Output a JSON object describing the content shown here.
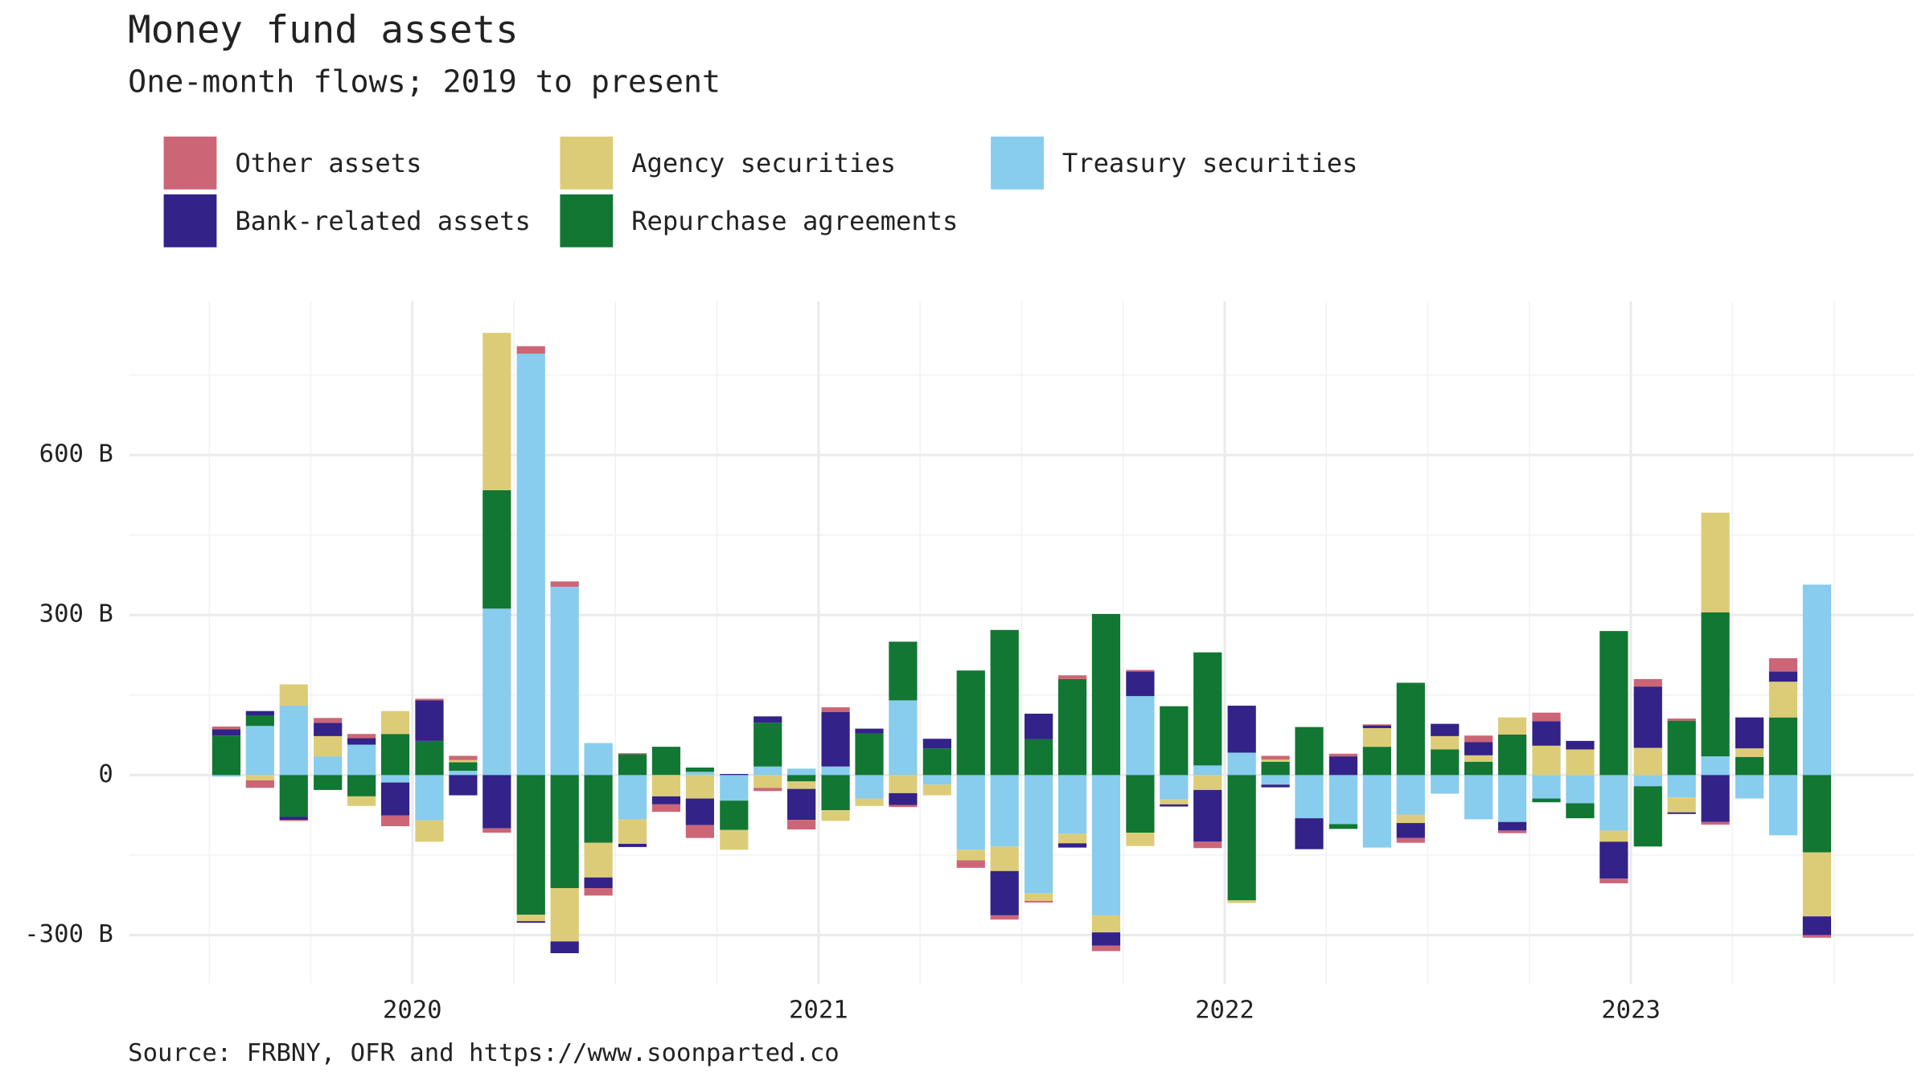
{
  "chart_data": {
    "type": "bar",
    "stacked": true,
    "title": "Money fund assets",
    "subtitle": "One-month flows; 2019 to present",
    "caption": "Source: FRBNY, OFR and https://www.soonparted.co",
    "x": [
      2019.542,
      2019.625,
      2019.708,
      2019.792,
      2019.875,
      2019.958,
      2020.042,
      2020.125,
      2020.208,
      2020.292,
      2020.375,
      2020.458,
      2020.542,
      2020.625,
      2020.708,
      2020.792,
      2020.875,
      2020.958,
      2021.042,
      2021.125,
      2021.208,
      2021.292,
      2021.375,
      2021.458,
      2021.542,
      2021.625,
      2021.708,
      2021.792,
      2021.875,
      2021.958,
      2022.042,
      2022.125,
      2022.208,
      2022.292,
      2022.375,
      2022.458,
      2022.542,
      2022.625,
      2022.708,
      2022.792,
      2022.875,
      2022.958,
      2023.042,
      2023.125,
      2023.208,
      2023.292,
      2023.375,
      2023.458
    ],
    "series": [
      {
        "name": "Other assets",
        "color": "#CC6677",
        "values": [
          5,
          -14,
          -2,
          9,
          8,
          -20,
          3,
          8,
          -8,
          14,
          10,
          -14,
          2,
          -14,
          -24,
          0,
          -6,
          -18,
          9,
          0,
          -4,
          0,
          -14,
          -8,
          -3,
          7,
          -10,
          3,
          0,
          -12,
          0,
          7,
          0,
          5,
          2,
          -9,
          0,
          12,
          -5,
          16,
          0,
          -9,
          14,
          4,
          -5,
          0,
          25,
          -5
        ]
      },
      {
        "name": "Bank-related assets",
        "color": "#332288",
        "values": [
          12,
          8,
          -6,
          25,
          12,
          -62,
          76,
          -38,
          -100,
          -3,
          -22,
          -20,
          -6,
          -15,
          -50,
          2,
          12,
          -58,
          102,
          9,
          -22,
          18,
          0,
          -83,
          48,
          -8,
          -25,
          46,
          -4,
          -97,
          88,
          -5,
          -58,
          35,
          5,
          -28,
          23,
          25,
          -16,
          46,
          16,
          -69,
          115,
          -3,
          -88,
          58,
          19,
          -35
        ]
      },
      {
        "name": "Agency securities",
        "color": "#DDCC77",
        "values": [
          0,
          -10,
          40,
          38,
          -18,
          43,
          -40,
          4,
          295,
          -12,
          -100,
          -65,
          -46,
          -40,
          -44,
          -37,
          -24,
          -14,
          -20,
          -14,
          -34,
          -20,
          -20,
          -46,
          -14,
          -18,
          -32,
          -25,
          -9,
          -28,
          -5,
          4,
          0,
          0,
          35,
          -16,
          25,
          12,
          32,
          55,
          48,
          -21,
          51,
          -28,
          187,
          16,
          67,
          -120
        ]
      },
      {
        "name": "Repurchase agreements",
        "color": "#117733",
        "values": [
          74,
          20,
          -78,
          -28,
          -40,
          77,
          64,
          16,
          222,
          -262,
          -212,
          -127,
          39,
          53,
          8,
          -55,
          82,
          -12,
          -66,
          78,
          110,
          50,
          196,
          272,
          67,
          180,
          302,
          -108,
          129,
          212,
          -235,
          25,
          90,
          -9,
          53,
          173,
          48,
          25,
          76,
          -7,
          -28,
          270,
          -113,
          102,
          270,
          34,
          108,
          -145
        ]
      },
      {
        "name": "Treasury securities",
        "color": "#88CCEE",
        "values": [
          -3,
          92,
          130,
          35,
          57,
          -14,
          -85,
          8,
          312,
          790,
          353,
          60,
          -83,
          0,
          6,
          -48,
          16,
          12,
          16,
          -44,
          140,
          -18,
          -140,
          -134,
          -222,
          -110,
          -263,
          148,
          -46,
          18,
          42,
          -18,
          -81,
          -92,
          -136,
          -74,
          -35,
          -83,
          -88,
          -44,
          -53,
          -104,
          -21,
          -42,
          35,
          -44,
          -113,
          357
        ]
      }
    ],
    "xlim": [
      2019.303,
      2023.697
    ],
    "xticks": [
      2020,
      2021,
      2022,
      2023
    ],
    "xminor": [
      2019.5,
      2019.75,
      2020.25,
      2020.5,
      2020.75,
      2021.25,
      2021.5,
      2021.75,
      2022.25,
      2022.5,
      2022.75,
      2023.25,
      2023.5
    ],
    "ylim": [
      -392,
      888
    ],
    "yticks": [
      {
        "value": -300,
        "label": "-300 B"
      },
      0,
      {
        "value": 300,
        "label": "300 B"
      },
      {
        "value": 600,
        "label": "600 B"
      }
    ],
    "yminor": [
      -150,
      150,
      450,
      750
    ],
    "grid": true,
    "legend": "top"
  }
}
